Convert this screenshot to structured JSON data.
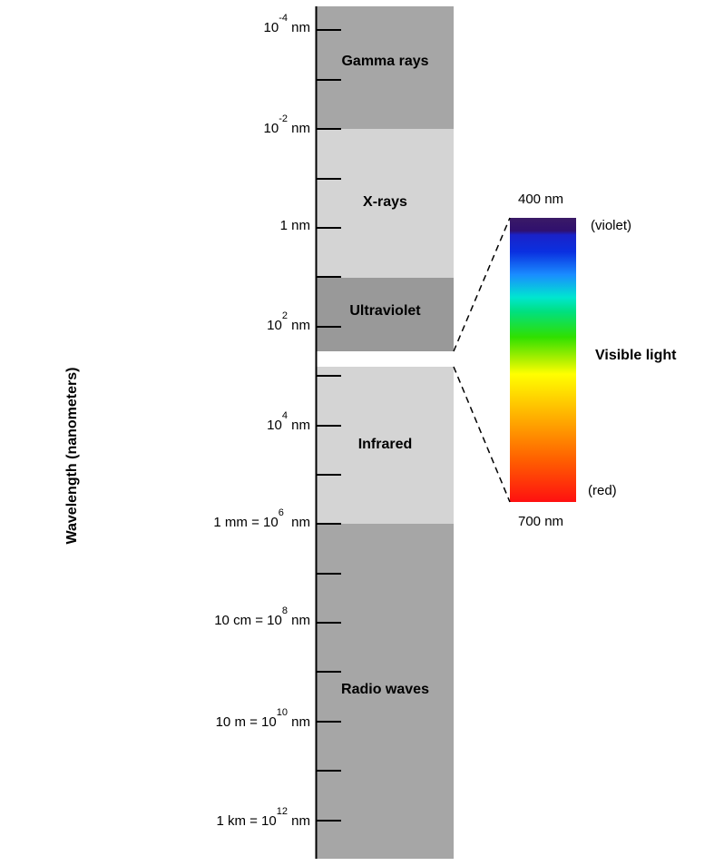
{
  "axis": {
    "title": "Wavelength (nanometers)"
  },
  "ticks": [
    {
      "base": "10",
      "exp": "-4",
      "suffix": " nm"
    },
    {
      "base": "10",
      "exp": "-2",
      "suffix": " nm"
    },
    {
      "base": "1 nm",
      "exp": "",
      "suffix": ""
    },
    {
      "base": "10",
      "exp": "2",
      "suffix": " nm"
    },
    {
      "base": "10",
      "exp": "4",
      "suffix": " nm"
    },
    {
      "base": "1 mm = 10",
      "exp": "6",
      "suffix": "  nm"
    },
    {
      "base": "10 cm = 10",
      "exp": "8",
      "suffix": " nm"
    },
    {
      "base": "10 m = 10",
      "exp": "10",
      "suffix": " nm"
    },
    {
      "base": "1 km = 10",
      "exp": "12",
      "suffix": " nm"
    }
  ],
  "bands": {
    "gamma": {
      "label": "Gamma rays",
      "color": "#a6a6a6"
    },
    "xray": {
      "label": "X-rays",
      "color": "#d4d4d4"
    },
    "uv": {
      "label": "Ultraviolet",
      "color": "#999999"
    },
    "infrared": {
      "label": "Infrared",
      "color": "#d4d4d4"
    },
    "radio": {
      "label": "Radio waves",
      "color": "#a6a6a6"
    }
  },
  "spectrum": {
    "label": "Visible light",
    "top_label": "400 nm",
    "bottom_label": "700 nm",
    "violet_label": "(violet)",
    "red_label": "(red)"
  }
}
